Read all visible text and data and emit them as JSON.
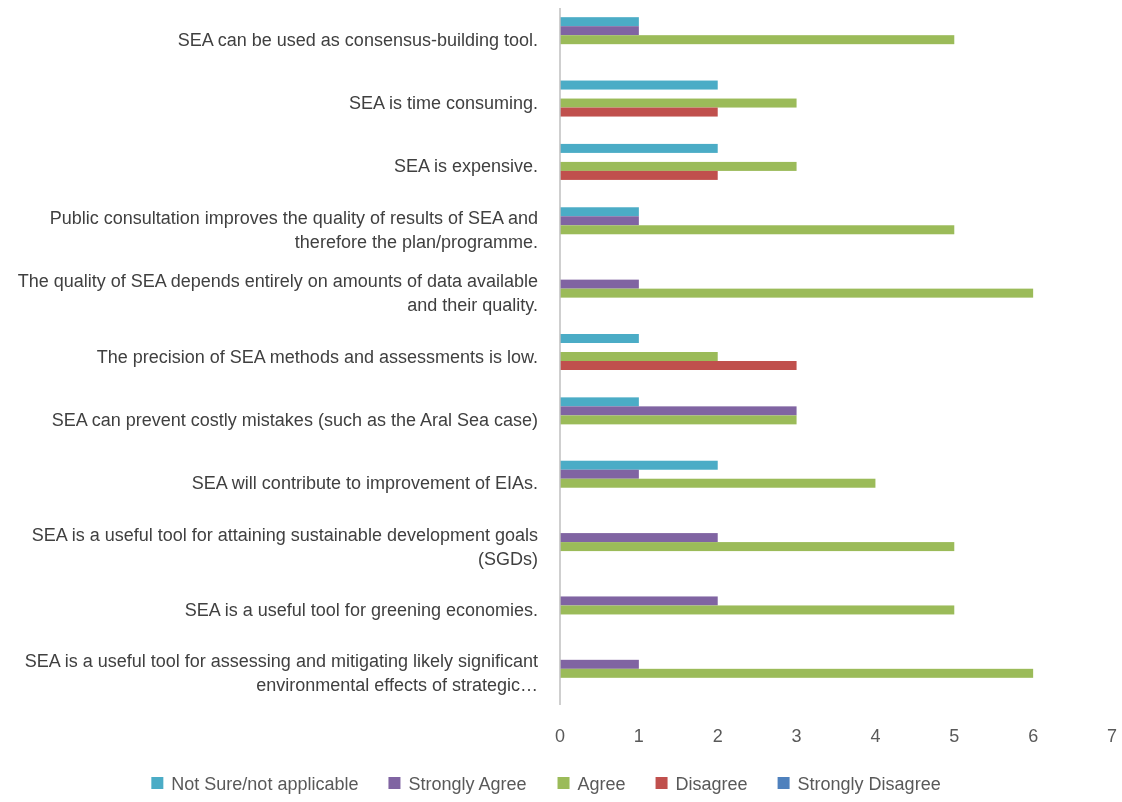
{
  "chart_data": {
    "type": "bar",
    "orientation": "horizontal",
    "categories": [
      "SEA can be used as consensus-building tool.",
      "SEA is time consuming.",
      "SEA is expensive.",
      "Public consultation improves the quality of results of SEA and therefore the plan/programme.",
      "The quality of SEA depends entirely on amounts of data available and their quality.",
      "The precision of SEA methods and assessments is low.",
      "SEA can prevent costly mistakes (such as the Aral Sea case)",
      "SEA will contribute to improvement of EIAs.",
      "SEA is a useful tool for attaining sustainable development goals (SGDs)",
      "SEA is a useful tool for greening economies.",
      "SEA is a useful tool for assessing and mitigating likely significant environmental effects of strategic…"
    ],
    "series": [
      {
        "name": "Not Sure/not applicable",
        "color": "#4bacc6",
        "values": [
          1,
          2,
          2,
          1,
          null,
          1,
          1,
          2,
          null,
          null,
          null
        ]
      },
      {
        "name": "Strongly Agree",
        "color": "#8064a2",
        "values": [
          1,
          null,
          null,
          1,
          1,
          null,
          3,
          1,
          2,
          2,
          1
        ]
      },
      {
        "name": "Agree",
        "color": "#9bbb59",
        "values": [
          5,
          3,
          3,
          5,
          6,
          2,
          3,
          4,
          5,
          5,
          6
        ]
      },
      {
        "name": "Disagree",
        "color": "#c0504d",
        "values": [
          null,
          2,
          2,
          null,
          null,
          3,
          null,
          null,
          null,
          null,
          null
        ]
      },
      {
        "name": "Strongly Disagree",
        "color": "#4f81bd",
        "values": [
          null,
          null,
          null,
          null,
          null,
          null,
          null,
          null,
          null,
          null,
          null
        ]
      }
    ],
    "xlim": [
      0,
      7
    ],
    "xticks": [
      0,
      1,
      2,
      3,
      4,
      5,
      6,
      7
    ],
    "grid": false,
    "legend": "bottom"
  }
}
